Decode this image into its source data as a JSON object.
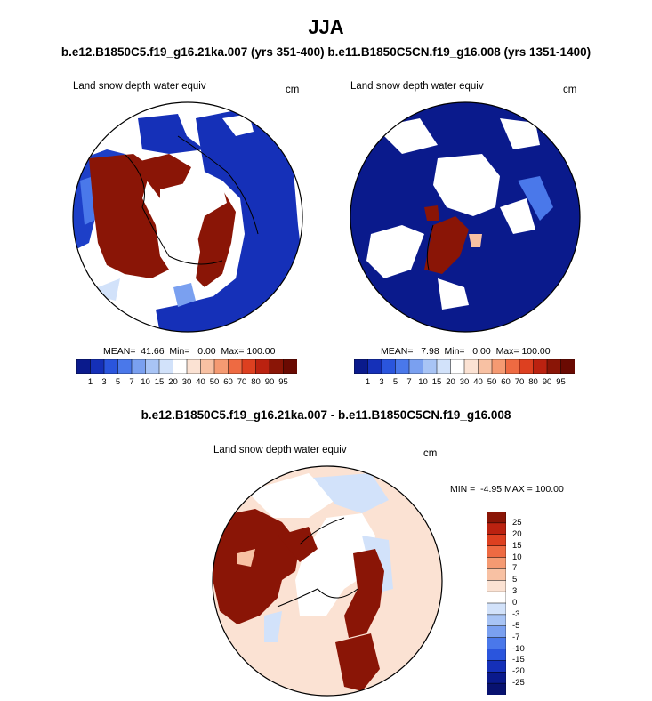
{
  "page": {
    "title": "JJA",
    "subtitle_left": "b.e12.B1850C5.f19_g16.21ka.007 (yrs 351-400)",
    "subtitle_right": "b.e11.B1850C5CN.f19_g16.008 (yrs 1351-1400)",
    "diff_title": "b.e12.B1850C5.f19_g16.21ka.007 - b.e11.B1850C5CN.f19_g16.008"
  },
  "panels": [
    {
      "id": "left",
      "variable": "Land snow depth water equiv",
      "units": "cm",
      "stats": "MEAN=  41.66  Min=   0.00  Max= 100.00"
    },
    {
      "id": "right",
      "variable": "Land snow depth water equiv",
      "units": "cm",
      "stats": "MEAN=   7.98  Min=   0.00  Max= 100.00"
    },
    {
      "id": "diff",
      "variable": "Land snow depth water equiv",
      "units": "cm",
      "stats": "MIN =  -4.95 MAX = 100.00"
    }
  ],
  "colorbar_abs": {
    "labels": [
      "1",
      "3",
      "5",
      "7",
      "10",
      "15",
      "20",
      "30",
      "40",
      "50",
      "60",
      "70",
      "80",
      "90",
      "95"
    ],
    "colors": [
      "#0a1a8c",
      "#1530b8",
      "#2a55dd",
      "#4a78ea",
      "#7aa0f0",
      "#a8c4f5",
      "#d2e2fa",
      "#ffffff",
      "#fbe2d3",
      "#f8c1a3",
      "#f59a72",
      "#ee6a42",
      "#dd4020",
      "#bb2210",
      "#8a1506",
      "#6a0a02"
    ]
  },
  "colorbar_diff": {
    "labels": [
      "25",
      "20",
      "15",
      "10",
      "7",
      "5",
      "3",
      "0",
      "-3",
      "-5",
      "-7",
      "-10",
      "-15",
      "-20",
      "-25"
    ],
    "colors": [
      "#8a1506",
      "#bb2210",
      "#dd4020",
      "#ee6a42",
      "#f59a72",
      "#f8c1a3",
      "#fbe2d3",
      "#ffffff",
      "#d2e2fa",
      "#a8c4f5",
      "#7aa0f0",
      "#4a78ea",
      "#2a55dd",
      "#1530b8",
      "#0a1a8c",
      "#081270"
    ]
  }
}
